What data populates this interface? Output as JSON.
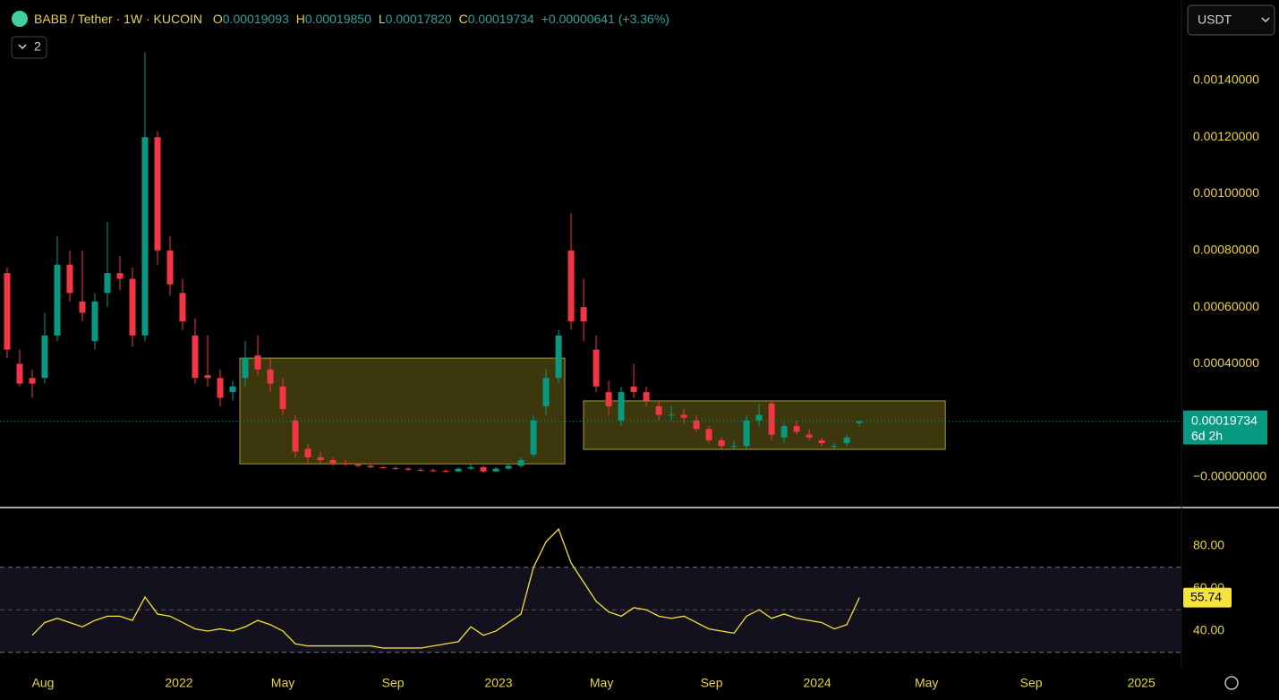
{
  "header": {
    "symbol": "BABB / Tether · 1W · KUCOIN",
    "ohlc": [
      {
        "key": "O",
        "value": "0.00019093"
      },
      {
        "key": "H",
        "value": "0.00019850"
      },
      {
        "key": "L",
        "value": "0.00017820"
      },
      {
        "key": "C",
        "value": "0.00019734"
      }
    ],
    "change": "+0.00000641 (+3.36%)",
    "collapse_count": "2",
    "countdown": "6d 2h",
    "currency": "USDT"
  },
  "chart_data": [
    {
      "type": "candlestick",
      "up_color": "#089981",
      "down_color": "#f23645",
      "xlim": [
        -0.57,
        93.7
      ],
      "xticks": [
        {
          "value": 2.86,
          "label": "Aug"
        },
        {
          "value": 13.71,
          "label": "2022"
        },
        {
          "value": 22,
          "label": "May"
        },
        {
          "value": 30.79,
          "label": "Sep"
        },
        {
          "value": 39.21,
          "label": "2023"
        },
        {
          "value": 47.43,
          "label": "May"
        },
        {
          "value": 56.21,
          "label": "Sep"
        },
        {
          "value": 64.64,
          "label": "2024"
        },
        {
          "value": 73.36,
          "label": "May"
        },
        {
          "value": 81.71,
          "label": "Sep"
        },
        {
          "value": 90.5,
          "label": "2025"
        }
      ],
      "ylim": [
        -0.000101,
        0.001684
      ],
      "yticks": [
        {
          "value": 0.0014,
          "label": "0.00140000"
        },
        {
          "value": 0.0012,
          "label": "0.00120000"
        },
        {
          "value": 0.001,
          "label": "0.00100000"
        },
        {
          "value": 0.0008,
          "label": "0.00080000"
        },
        {
          "value": 0.0006,
          "label": "0.00060000"
        },
        {
          "value": 0.0004,
          "label": "0.00040000"
        },
        {
          "value": 0,
          "label": "−0.00000000"
        }
      ],
      "zones": [
        {
          "x": [
            18.57,
            44.5
          ],
          "y": [
            4.7e-05,
            0.00042
          ]
        },
        {
          "x": [
            45.99,
            74.86
          ],
          "y": [
            9.8e-05,
            0.000269
          ]
        }
      ],
      "open": [
        0.00072,
        0.0004,
        0.00035,
        0.00035,
        0.0005,
        0.00075,
        0.00062,
        0.00048,
        0.00065,
        0.00072,
        0.0007,
        0.0005,
        0.0012,
        0.0008,
        0.00065,
        0.0005,
        0.00036,
        0.00035,
        0.0003,
        0.00035,
        0.00043,
        0.00038,
        0.00032,
        0.0002,
        0.0001,
        7e-05,
        6e-05,
        5e-05,
        4.5e-05,
        4e-05,
        3.5e-05,
        3.2e-05,
        3e-05,
        2.6e-05,
        2.4e-05,
        2.2e-05,
        2e-05,
        3e-05,
        3.5e-05,
        2e-05,
        3e-05,
        4e-05,
        8e-05,
        0.00025,
        0.00035,
        0.0008,
        0.0006,
        0.00045,
        0.0003,
        0.0002,
        0.00032,
        0.0003,
        0.00025,
        0.00022,
        0.00022,
        0.0002,
        0.00017,
        0.00013,
        0.00011,
        0.00011,
        0.0002,
        0.00026,
        0.00014,
        0.00018,
        0.00015,
        0.00013,
        0.00011,
        0.00012,
        0.00019093
      ],
      "high": [
        0.00074,
        0.00045,
        0.00038,
        0.00058,
        0.00085,
        0.0008,
        0.0008,
        0.00065,
        0.0009,
        0.00078,
        0.00074,
        0.0015,
        0.00122,
        0.00085,
        0.0007,
        0.00056,
        0.0005,
        0.00038,
        0.00034,
        0.00048,
        0.0005,
        0.00042,
        0.00035,
        0.00022,
        0.00012,
        9e-05,
        7e-05,
        6e-05,
        5e-05,
        4.5e-05,
        4e-05,
        3.8e-05,
        3.5e-05,
        3.2e-05,
        3e-05,
        2.8e-05,
        3.5e-05,
        5e-05,
        4e-05,
        3.5e-05,
        4.5e-05,
        7e-05,
        0.00022,
        0.00038,
        0.00052,
        0.00093,
        0.0007,
        0.0005,
        0.00034,
        0.00032,
        0.0004,
        0.00032,
        0.00027,
        0.00025,
        0.00024,
        0.00022,
        0.00018,
        0.00014,
        0.00013,
        0.00022,
        0.00026,
        0.00027,
        0.00019,
        0.0002,
        0.00017,
        0.00014,
        0.00012,
        0.00015,
        0.0001985
      ],
      "low": [
        0.00042,
        0.00032,
        0.00028,
        0.00033,
        0.00048,
        0.00062,
        0.00055,
        0.00045,
        0.0006,
        0.00066,
        0.00046,
        0.00048,
        0.00075,
        0.00064,
        0.00052,
        0.00033,
        0.00032,
        0.00025,
        0.00027,
        0.00032,
        0.00036,
        0.0003,
        0.00022,
        7e-05,
        5e-05,
        5e-05,
        4e-05,
        4e-05,
        3.5e-05,
        3e-05,
        3e-05,
        2.5e-05,
        2.3e-05,
        2e-05,
        1.8e-05,
        1.6e-05,
        1.8e-05,
        2.5e-05,
        1.5e-05,
        1.8e-05,
        2.5e-05,
        3.5e-05,
        7e-05,
        0.00022,
        0.00033,
        0.00052,
        0.00048,
        0.0003,
        0.00022,
        0.00018,
        0.00028,
        0.00025,
        0.0002,
        0.0002,
        0.00019,
        0.00016,
        0.00012,
        0.0001,
        0.0001,
        0.0001,
        0.00018,
        0.00013,
        0.00012,
        0.00015,
        0.00013,
        0.00011,
        0.0001,
        0.00011,
        0.0001782
      ],
      "close": [
        0.00045,
        0.00033,
        0.00033,
        0.0005,
        0.00075,
        0.00065,
        0.00058,
        0.00062,
        0.00072,
        0.0007,
        0.0005,
        0.0012,
        0.0008,
        0.00068,
        0.00055,
        0.00035,
        0.00035,
        0.00028,
        0.00032,
        0.00042,
        0.00038,
        0.00033,
        0.00024,
        9e-05,
        7e-05,
        6e-05,
        5e-05,
        4.5e-05,
        4e-05,
        3.5e-05,
        3.2e-05,
        3e-05,
        2.6e-05,
        2.4e-05,
        2.2e-05,
        2e-05,
        3e-05,
        3.5e-05,
        2e-05,
        3e-05,
        4e-05,
        6e-05,
        0.0002,
        0.00035,
        0.0005,
        0.00055,
        0.00055,
        0.00032,
        0.00025,
        0.0003,
        0.0003,
        0.00027,
        0.00022,
        0.00022,
        0.00021,
        0.00017,
        0.00013,
        0.00011,
        0.00011,
        0.0002,
        0.00022,
        0.00015,
        0.00018,
        0.00016,
        0.00014,
        0.00012,
        0.00011,
        0.00014,
        0.00019734
      ]
    },
    {
      "type": "line",
      "color": "#f5e23b",
      "band": [
        30,
        70
      ],
      "band_color": "#14111f",
      "ylim": [
        24.4,
        97.7
      ],
      "yticks": [
        {
          "value": 80,
          "label": "80.00"
        },
        {
          "value": 60,
          "label": "60.00"
        },
        {
          "value": 40,
          "label": "40.00"
        }
      ],
      "values": [
        null,
        null,
        38,
        44,
        46,
        44,
        42,
        45,
        47,
        47,
        45,
        56,
        48,
        47,
        44,
        41,
        40,
        41,
        40,
        42,
        45,
        43,
        40,
        34,
        33,
        33,
        33,
        33,
        33,
        33,
        32,
        32,
        32,
        32,
        33,
        34,
        35,
        42,
        38,
        40,
        44,
        48,
        70,
        82,
        88,
        72,
        63,
        54,
        49,
        47,
        51,
        50,
        47,
        46,
        47,
        44,
        41,
        40,
        39,
        47,
        50,
        46,
        48,
        46,
        45,
        44,
        41,
        43,
        55.74
      ]
    }
  ]
}
